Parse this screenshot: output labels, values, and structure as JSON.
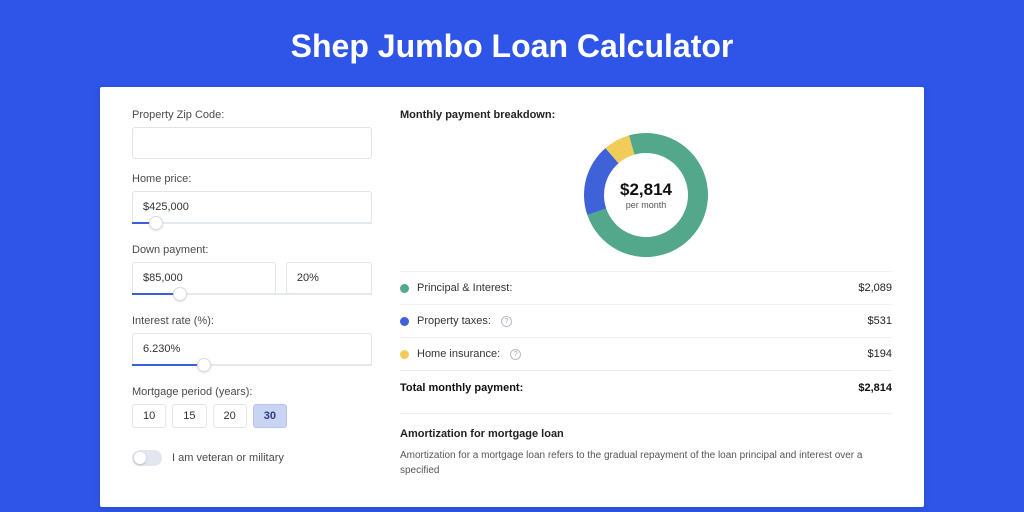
{
  "page": {
    "title": "Shep Jumbo Loan Calculator",
    "background_color": "#2f55e8",
    "card_bg": "#ffffff"
  },
  "form": {
    "zip": {
      "label": "Property Zip Code:",
      "value": ""
    },
    "home_price": {
      "label": "Home price:",
      "value": "$425,000",
      "slider_pct": 10
    },
    "down_payment": {
      "label": "Down payment:",
      "amount": "$85,000",
      "percent": "20%",
      "slider_pct": 20
    },
    "interest_rate": {
      "label": "Interest rate (%):",
      "value": "6.230%",
      "slider_pct": 30
    },
    "mortgage_period": {
      "label": "Mortgage period (years):",
      "options": [
        "10",
        "15",
        "20",
        "30"
      ],
      "selected_index": 3
    },
    "veteran": {
      "label": "I am veteran or military",
      "enabled": false
    }
  },
  "breakdown": {
    "title": "Monthly payment breakdown:",
    "center_amount": "$2,814",
    "center_sub": "per month",
    "donut": {
      "size": 124,
      "thickness": 20,
      "slices": [
        {
          "key": "pi",
          "label": "Principal & Interest:",
          "value": "$2,089",
          "pct": 74.2,
          "color": "#53a88b"
        },
        {
          "key": "taxes",
          "label": "Property taxes:",
          "value": "$531",
          "pct": 18.9,
          "color": "#3f62d8",
          "info": true
        },
        {
          "key": "insurance",
          "label": "Home insurance:",
          "value": "$194",
          "pct": 6.9,
          "color": "#f2cc5a",
          "info": true
        }
      ],
      "start_angle": -16
    },
    "total": {
      "label": "Total monthly payment:",
      "value": "$2,814"
    }
  },
  "amortization": {
    "title": "Amortization for mortgage loan",
    "text": "Amortization for a mortgage loan refers to the gradual repayment of the loan principal and interest over a specified"
  }
}
